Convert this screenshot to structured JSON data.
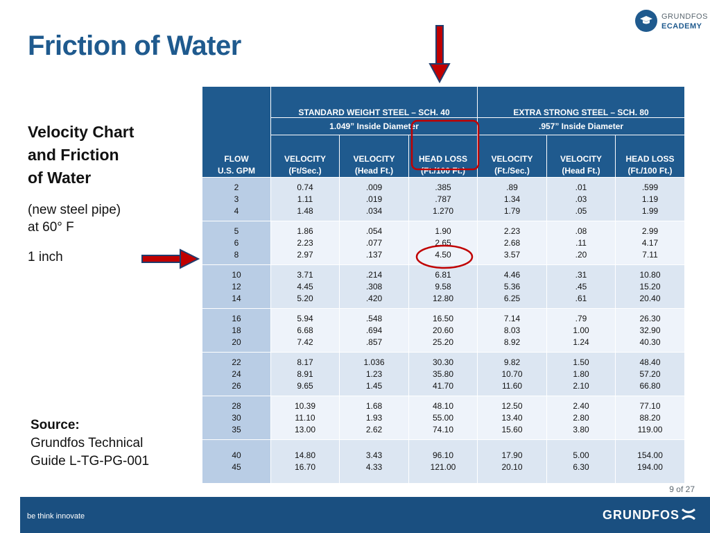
{
  "slide": {
    "title": "Friction of Water",
    "heading": [
      "Velocity Chart",
      "and Friction",
      "of Water"
    ],
    "subtext": [
      "(new steel pipe)",
      "at 60° F"
    ],
    "pipe_size": "1 inch",
    "source_label": "Source:",
    "source_text": [
      "Grundfos Technical",
      "Guide L-TG-PG-001"
    ],
    "page": "9 of 27"
  },
  "logo": {
    "line1": "GRUNDFOS",
    "line2": "ECADEMY"
  },
  "footer": {
    "tagline": "be think innovate",
    "brand": "GRUNDFOS"
  },
  "colors": {
    "title": "#1f5a8e",
    "header": "#1f5a8e",
    "footer": "#1a4f80",
    "highlight_red": "#c00000"
  },
  "table": {
    "groups": [
      "STANDARD WEIGHT STEEL – SCH. 40",
      "EXTRA STRONG STEEL – SCH. 80"
    ],
    "diameters": [
      "1.049” Inside Diameter",
      ".957” Inside Diameter"
    ],
    "flow_header": [
      "FLOW",
      "U.S. GPM"
    ],
    "columns": [
      [
        "VELOCITY",
        "(Ft/Sec.)"
      ],
      [
        "VELOCITY",
        "(Head Ft.)"
      ],
      [
        "HEAD LOSS",
        "(Ft./100 Ft.)"
      ],
      [
        "VELOCITY",
        "(Ft./Sec.)"
      ],
      [
        "VELOCITY",
        "(Head Ft.)"
      ],
      [
        "HEAD LOSS",
        "(Ft./100 Ft.)"
      ]
    ],
    "rows": [
      [
        [
          "2",
          "3",
          "4"
        ],
        [
          "0.74",
          "1.11",
          "1.48"
        ],
        [
          ".009",
          ".019",
          ".034"
        ],
        [
          ".385",
          ".787",
          "1.270"
        ],
        [
          ".89",
          "1.34",
          "1.79"
        ],
        [
          ".01",
          ".03",
          ".05"
        ],
        [
          ".599",
          "1.19",
          "1.99"
        ]
      ],
      [
        [
          "5",
          "6",
          "8"
        ],
        [
          "1.86",
          "2.23",
          "2.97"
        ],
        [
          ".054",
          ".077",
          ".137"
        ],
        [
          "1.90",
          "2.65",
          "4.50"
        ],
        [
          "2.23",
          "2.68",
          "3.57"
        ],
        [
          ".08",
          ".11",
          ".20"
        ],
        [
          "2.99",
          "4.17",
          "7.11"
        ]
      ],
      [
        [
          "10",
          "12",
          "14"
        ],
        [
          "3.71",
          "4.45",
          "5.20"
        ],
        [
          ".214",
          ".308",
          ".420"
        ],
        [
          "6.81",
          "9.58",
          "12.80"
        ],
        [
          "4.46",
          "5.36",
          "6.25"
        ],
        [
          ".31",
          ".45",
          ".61"
        ],
        [
          "10.80",
          "15.20",
          "20.40"
        ]
      ],
      [
        [
          "16",
          "18",
          "20"
        ],
        [
          "5.94",
          "6.68",
          "7.42"
        ],
        [
          ".548",
          ".694",
          ".857"
        ],
        [
          "16.50",
          "20.60",
          "25.20"
        ],
        [
          "7.14",
          "8.03",
          "8.92"
        ],
        [
          ".79",
          "1.00",
          "1.24"
        ],
        [
          "26.30",
          "32.90",
          "40.30"
        ]
      ],
      [
        [
          "22",
          "24",
          "26"
        ],
        [
          "8.17",
          "8.91",
          "9.65"
        ],
        [
          "1.036",
          "1.23",
          "1.45"
        ],
        [
          "30.30",
          "35.80",
          "41.70"
        ],
        [
          "9.82",
          "10.70",
          "11.60"
        ],
        [
          "1.50",
          "1.80",
          "2.10"
        ],
        [
          "48.40",
          "57.20",
          "66.80"
        ]
      ],
      [
        [
          "28",
          "30",
          "35"
        ],
        [
          "10.39",
          "11.10",
          "13.00"
        ],
        [
          "1.68",
          "1.93",
          "2.62"
        ],
        [
          "48.10",
          "55.00",
          "74.10"
        ],
        [
          "12.50",
          "13.40",
          "15.60"
        ],
        [
          "2.40",
          "2.80",
          "3.80"
        ],
        [
          "77.10",
          "88.20",
          "119.00"
        ]
      ],
      [
        [
          "40",
          "45"
        ],
        [
          "14.80",
          "16.70"
        ],
        [
          "3.43",
          "4.33"
        ],
        [
          "96.10",
          "121.00"
        ],
        [
          "17.90",
          "20.10"
        ],
        [
          "5.00",
          "6.30"
        ],
        [
          "154.00",
          "194.00"
        ]
      ]
    ]
  }
}
